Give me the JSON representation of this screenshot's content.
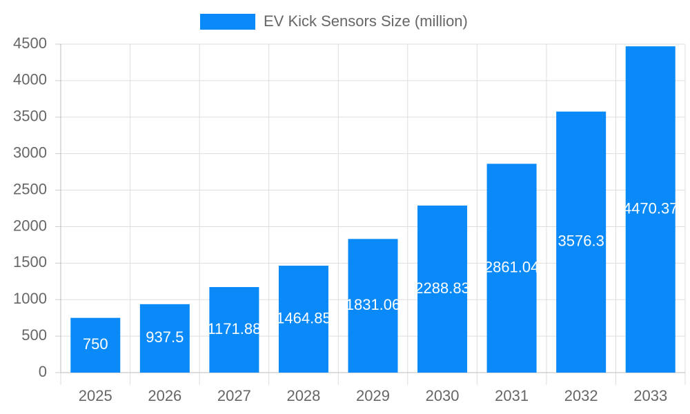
{
  "chart_data": {
    "type": "bar",
    "legend": "EV Kick Sensors Size (million)",
    "legend_position": "top",
    "categories": [
      "2025",
      "2026",
      "2027",
      "2028",
      "2029",
      "2030",
      "2031",
      "2032",
      "2033"
    ],
    "values": [
      750,
      937.5,
      1171.88,
      1464.85,
      1831.06,
      2288.83,
      2861.04,
      3576.3,
      4470.37
    ],
    "color": "#0a8af8",
    "ylim": [
      0,
      4500
    ],
    "yticks": [
      0,
      500,
      1000,
      1500,
      2000,
      2500,
      3000,
      3500,
      4000,
      4500
    ],
    "grid": true
  }
}
